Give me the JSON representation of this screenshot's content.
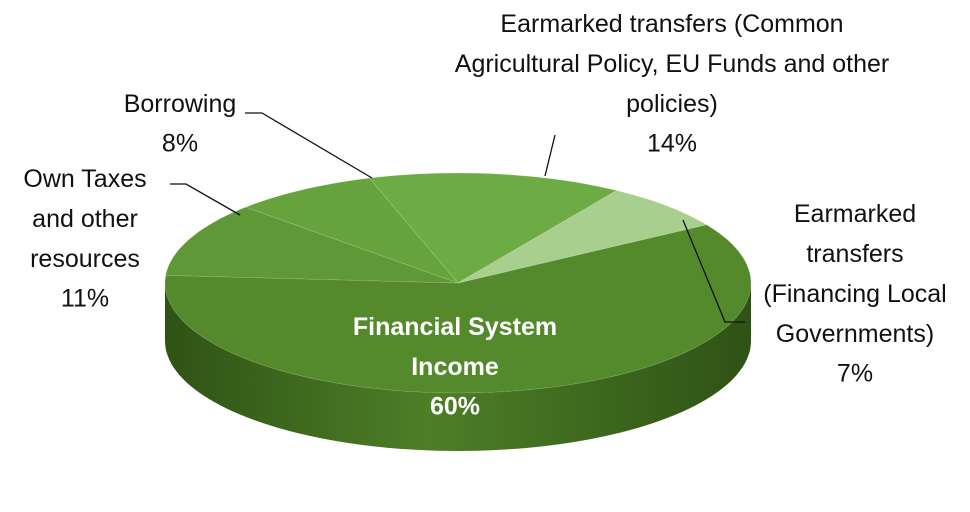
{
  "chart_data": {
    "type": "pie",
    "categories": [
      "Financial System Income",
      "Own Taxes and other resources",
      "Borrowing",
      "Earmarked transfers (Common Agricultural Policy, EU Funds and other policies)",
      "Earmarked transfers (Financing Local Governments)"
    ],
    "values": [
      60,
      11,
      8,
      14,
      7
    ],
    "value_labels": [
      "60%",
      "11%",
      "8%",
      "14%",
      "7%"
    ],
    "colors": [
      "#548a2c",
      "#5f9837",
      "#67a33d",
      "#6dac45",
      "#a9cf8e"
    ]
  }
}
